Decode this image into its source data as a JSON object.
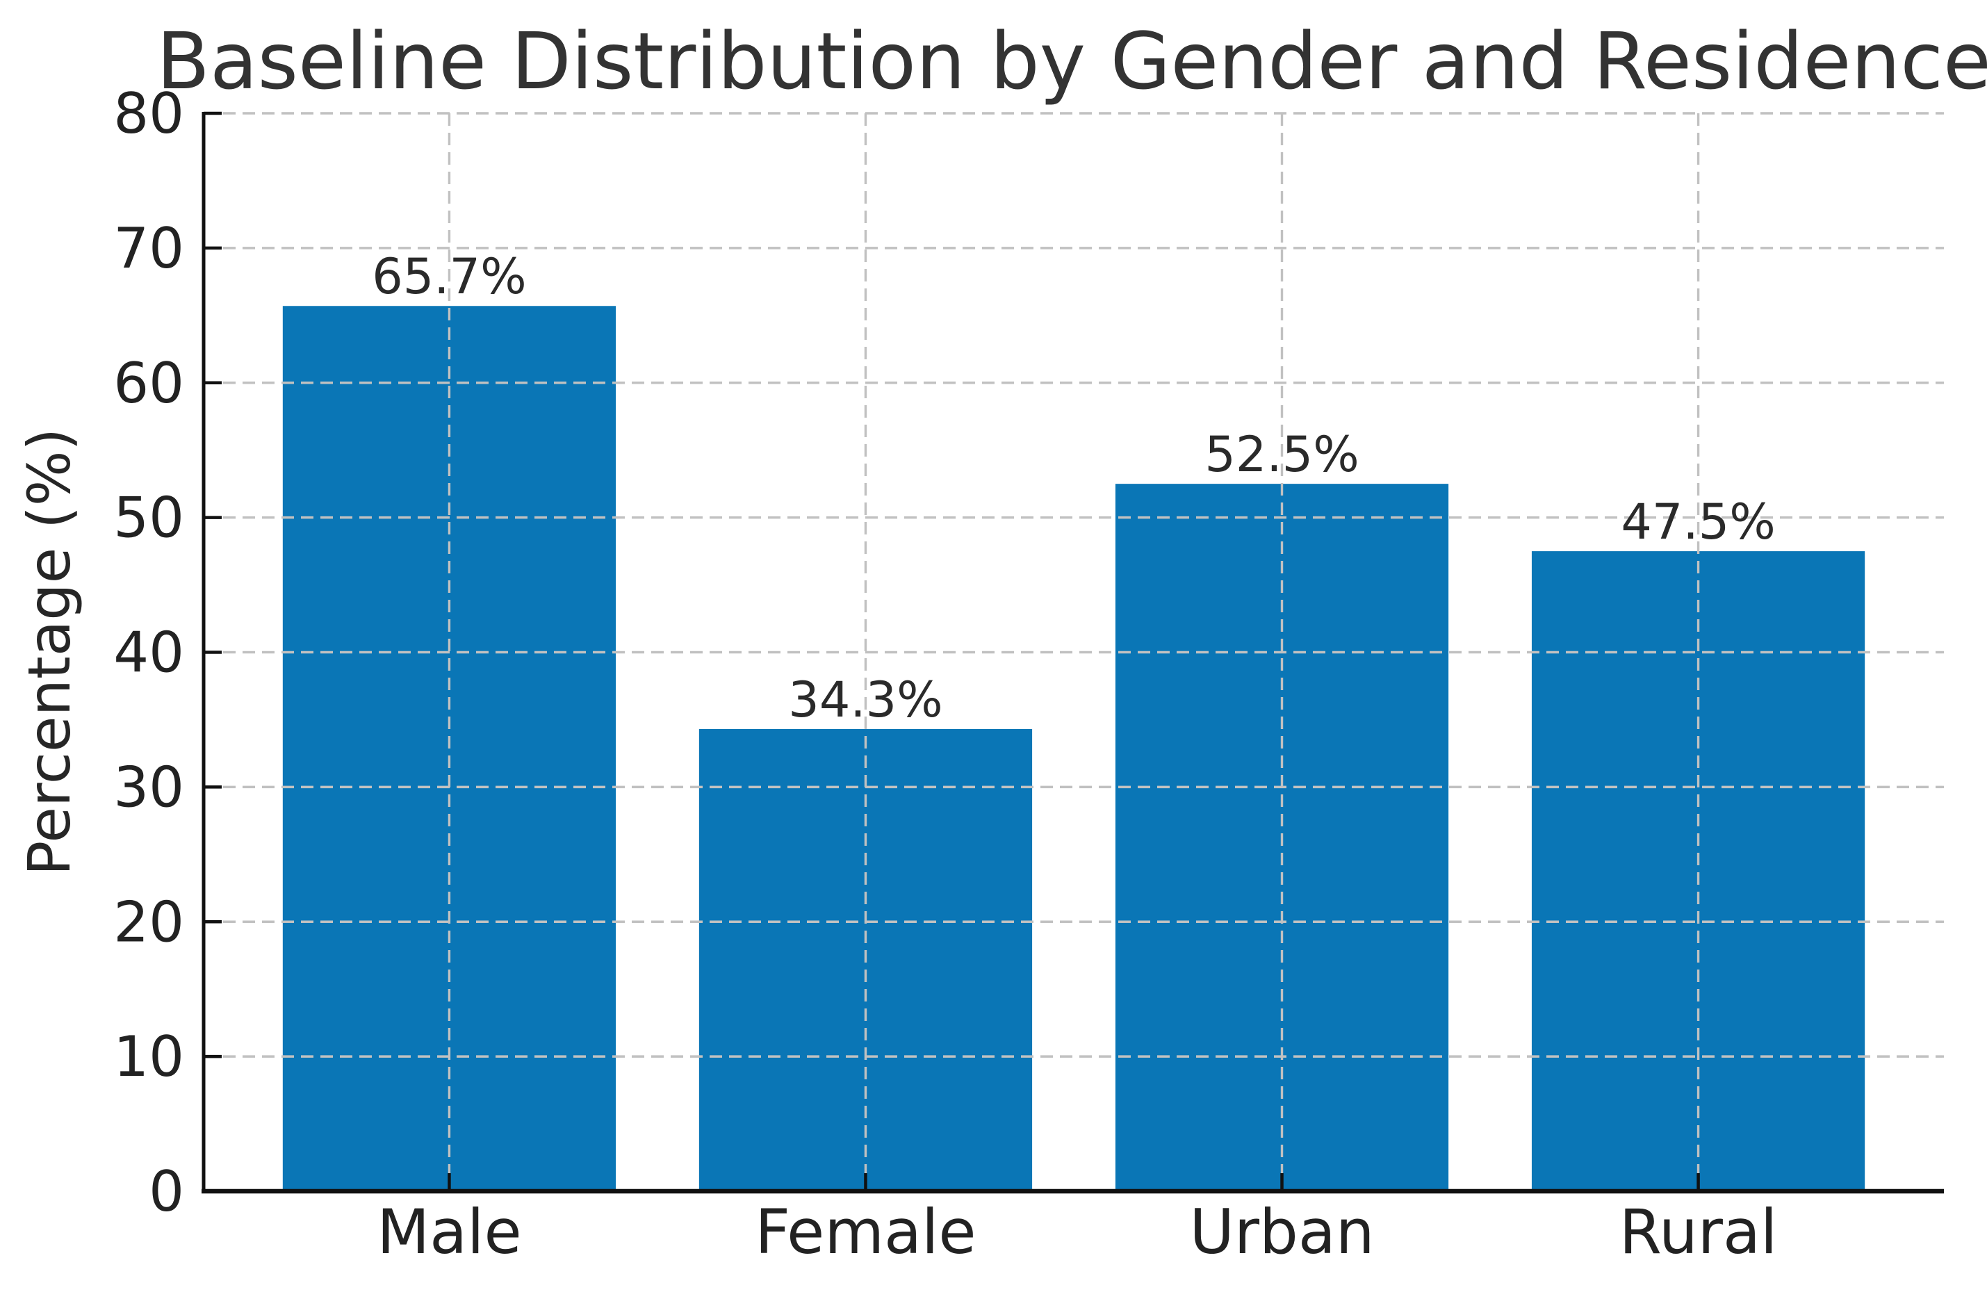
{
  "chart_data": {
    "type": "bar",
    "title": "Baseline Distribution by Gender and Residence",
    "ylabel": "Percentage (%)",
    "xlabel": "",
    "categories": [
      "Male",
      "Female",
      "Urban",
      "Rural"
    ],
    "values": [
      65.7,
      34.3,
      52.5,
      47.5
    ],
    "bar_labels": [
      "65.7%",
      "34.3%",
      "52.5%",
      "47.5%"
    ],
    "ylim": [
      0,
      80
    ],
    "yticks": [
      0,
      10,
      20,
      30,
      40,
      50,
      60,
      70,
      80
    ],
    "legend": "none",
    "grid": {
      "visible": true,
      "style": "dashed",
      "axes": "both",
      "above_bars": true
    },
    "bar_width_fraction": 0.8,
    "colors": {
      "bar": "#0A76B6",
      "grid": "#c1c1c1",
      "axis": "#111111",
      "text": "#222222",
      "title": "#333333",
      "background": "#ffffff"
    }
  }
}
